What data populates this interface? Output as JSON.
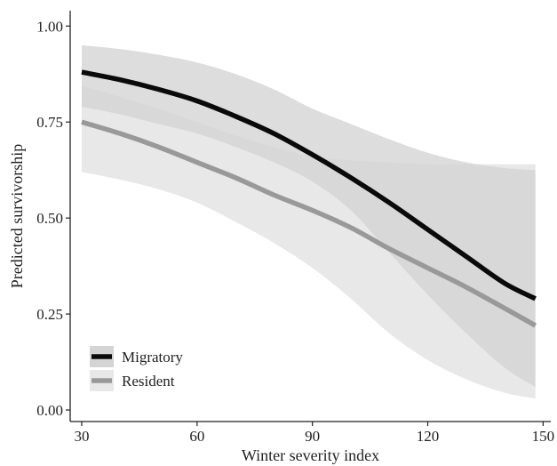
{
  "chart_data": {
    "type": "line",
    "title": "",
    "xlabel": "Winter severity index",
    "ylabel": "Predicted survivorship",
    "xlim": [
      27,
      152
    ],
    "ylim": [
      -0.03,
      1.04
    ],
    "xticks": [
      30,
      60,
      90,
      120,
      150
    ],
    "yticks": [
      0,
      0.25,
      0.5,
      0.75,
      1.0
    ],
    "xtick_labels": [
      "30",
      "60",
      "90",
      "120",
      "150"
    ],
    "ytick_labels": [
      "0.00",
      "0.25",
      "0.50",
      "0.75",
      "1.00"
    ],
    "grid": false,
    "legend_position": "bottom-left",
    "series": [
      {
        "name": "Migratory",
        "color": "#0a0a0a",
        "ribbon_color": "#d4d4d4",
        "x": [
          30,
          40,
          50,
          60,
          70,
          80,
          90,
          100,
          110,
          120,
          130,
          140,
          148
        ],
        "y": [
          0.88,
          0.86,
          0.835,
          0.805,
          0.765,
          0.72,
          0.665,
          0.605,
          0.54,
          0.47,
          0.4,
          0.33,
          0.29
        ],
        "lower": [
          0.79,
          0.77,
          0.745,
          0.72,
          0.685,
          0.645,
          0.595,
          0.52,
          0.41,
          0.3,
          0.2,
          0.11,
          0.06
        ],
        "upper": [
          0.95,
          0.94,
          0.925,
          0.905,
          0.875,
          0.835,
          0.785,
          0.745,
          0.705,
          0.67,
          0.645,
          0.63,
          0.625
        ]
      },
      {
        "name": "Resident",
        "color": "#999999",
        "ribbon_color": "#e8e8e8",
        "x": [
          30,
          40,
          50,
          60,
          70,
          80,
          90,
          100,
          110,
          120,
          130,
          140,
          148
        ],
        "y": [
          0.75,
          0.72,
          0.685,
          0.645,
          0.605,
          0.56,
          0.52,
          0.475,
          0.42,
          0.37,
          0.32,
          0.265,
          0.22
        ],
        "lower": [
          0.62,
          0.6,
          0.575,
          0.54,
          0.49,
          0.435,
          0.37,
          0.29,
          0.2,
          0.13,
          0.08,
          0.045,
          0.03
        ],
        "upper": [
          0.845,
          0.815,
          0.785,
          0.75,
          0.715,
          0.685,
          0.66,
          0.65,
          0.645,
          0.64,
          0.64,
          0.64,
          0.64
        ]
      }
    ]
  }
}
